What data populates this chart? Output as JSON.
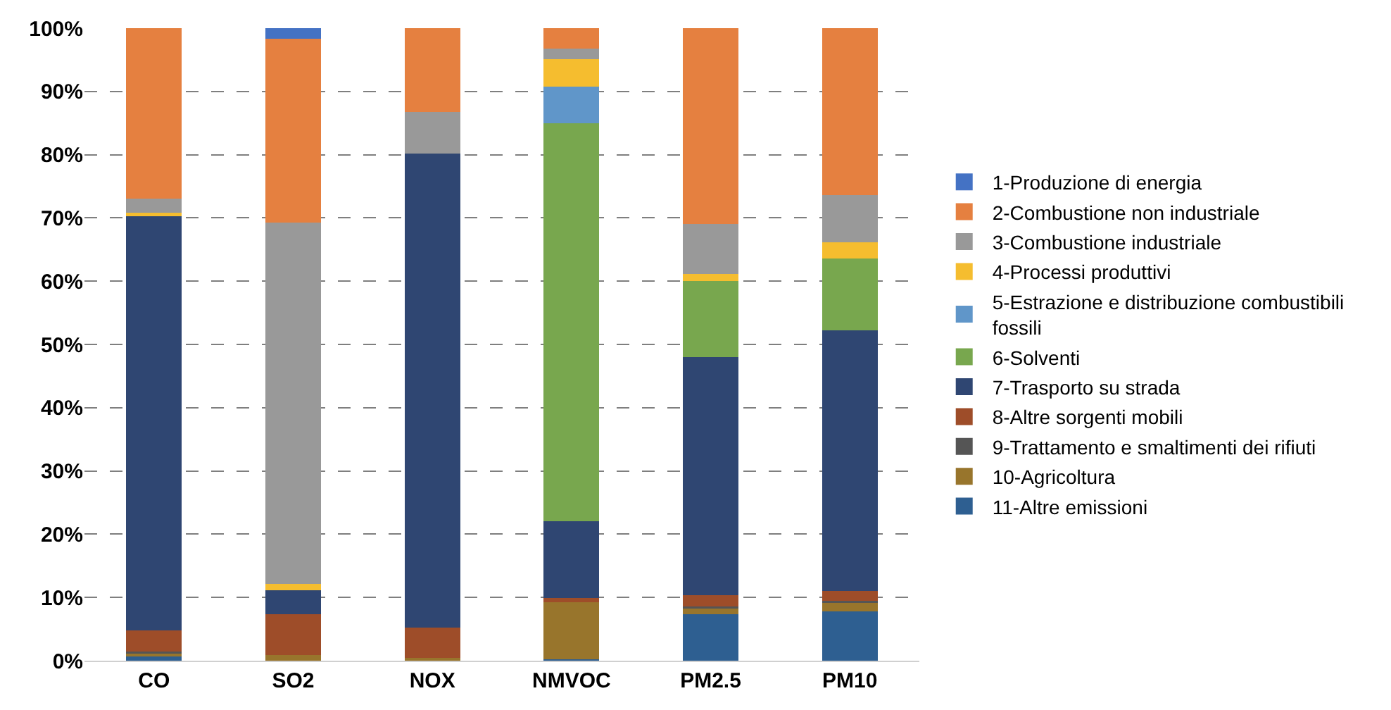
{
  "chart_data": {
    "type": "bar",
    "stacked": true,
    "categories": [
      "CO",
      "SO2",
      "NOX",
      "NMVOC",
      "PM2.5",
      "PM10"
    ],
    "ylim": [
      0,
      100
    ],
    "yticks": [
      {
        "value": 0,
        "label": "0%"
      },
      {
        "value": 10,
        "label": "10%"
      },
      {
        "value": 20,
        "label": "20%"
      },
      {
        "value": 30,
        "label": "30%"
      },
      {
        "value": 40,
        "label": "40%"
      },
      {
        "value": 50,
        "label": "50%"
      },
      {
        "value": 60,
        "label": "60%"
      },
      {
        "value": 70,
        "label": "70%"
      },
      {
        "value": 80,
        "label": "80%"
      },
      {
        "value": 90,
        "label": "90%"
      },
      {
        "value": 100,
        "label": "100%"
      }
    ],
    "grid": "y",
    "legend": "right",
    "series": [
      {
        "name": "11-Altre emissioni",
        "color": "#2e5f91",
        "values": [
          0.7,
          null,
          0,
          0.2,
          7.3,
          7.8
        ]
      },
      {
        "name": "10-Agricoltura",
        "color": "#98752c",
        "values": [
          0.5,
          0.9,
          0.4,
          9,
          1.0,
          1.4
        ]
      },
      {
        "name": "9-Trattamento e smaltimenti dei rifiuti",
        "color": "#555555",
        "values": [
          0.3,
          null,
          0,
          0,
          0.3,
          0.3
        ]
      },
      {
        "name": "8-Altre sorgenti mobili",
        "color": "#9e4d29",
        "values": [
          3.3,
          6.5,
          4.8,
          0.7,
          1.8,
          1.5
        ]
      },
      {
        "name": "7-Trasporto su strada",
        "color": "#2f4672",
        "values": [
          65.5,
          3.7,
          75,
          12.1,
          37.6,
          41.2
        ]
      },
      {
        "name": "6-Solventi",
        "color": "#78a74e",
        "values": [
          0,
          0,
          0,
          63,
          12,
          11.4
        ]
      },
      {
        "name": "5-Estrazione e distribuzione combustibili fossili",
        "color": "#6096c9",
        "values": [
          0,
          0,
          0,
          5.8,
          0,
          0
        ]
      },
      {
        "name": "4-Processi produttivi",
        "color": "#f5bd2f",
        "values": [
          0.5,
          1.0,
          0,
          4.3,
          1.1,
          2.5
        ]
      },
      {
        "name": "3-Combustione industriale",
        "color": "#999999",
        "values": [
          2.2,
          57.2,
          6.6,
          1.7,
          7.9,
          7.5
        ]
      },
      {
        "name": "2-Combustione non industriale",
        "color": "#e58040",
        "values": [
          27,
          29,
          13.2,
          3.2,
          31,
          26.4
        ]
      },
      {
        "name": "1-Produzione di energia",
        "color": "#4472c4",
        "values": [
          0,
          1.7,
          0,
          0,
          0,
          0
        ]
      }
    ]
  }
}
